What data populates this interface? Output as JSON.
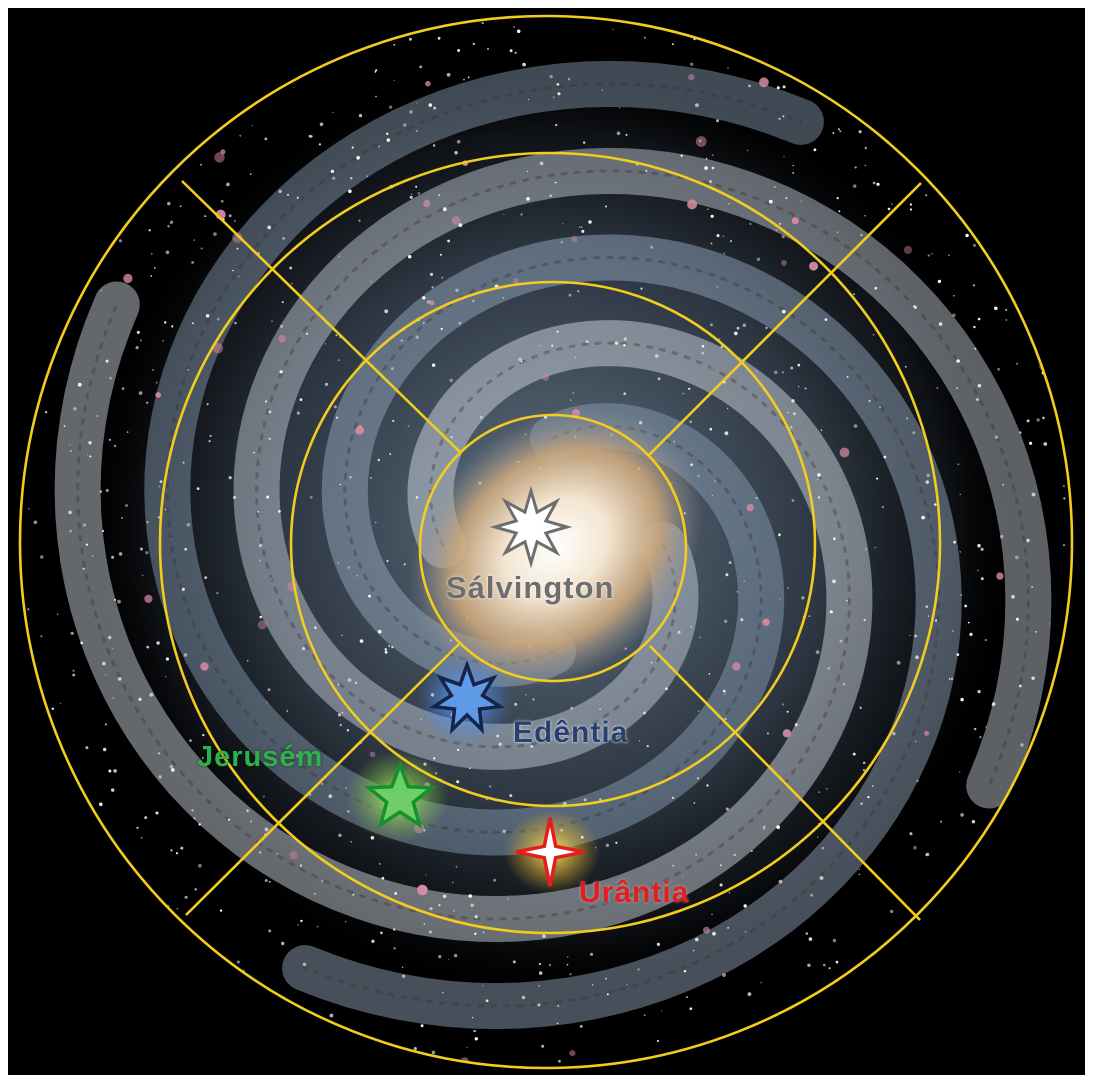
{
  "image": {
    "subject": "spiral galaxy map with concentric grid",
    "background_color": "#000000",
    "frame_color": "#ffffff",
    "grid_color": "#f2cc1e"
  },
  "markers": {
    "salvington": {
      "label": "Sálvington",
      "icon": "eight-point-star-icon",
      "color": "#6e6e6e"
    },
    "edentia": {
      "label": "Edêntia",
      "icon": "seven-point-star-icon",
      "color": "#283f70"
    },
    "jerusem": {
      "label": "Jerusém",
      "icon": "five-point-star-icon",
      "color": "#2bb34a"
    },
    "urantia": {
      "label": "Urântia",
      "icon": "four-point-star-icon",
      "color": "#e51d1d"
    }
  }
}
